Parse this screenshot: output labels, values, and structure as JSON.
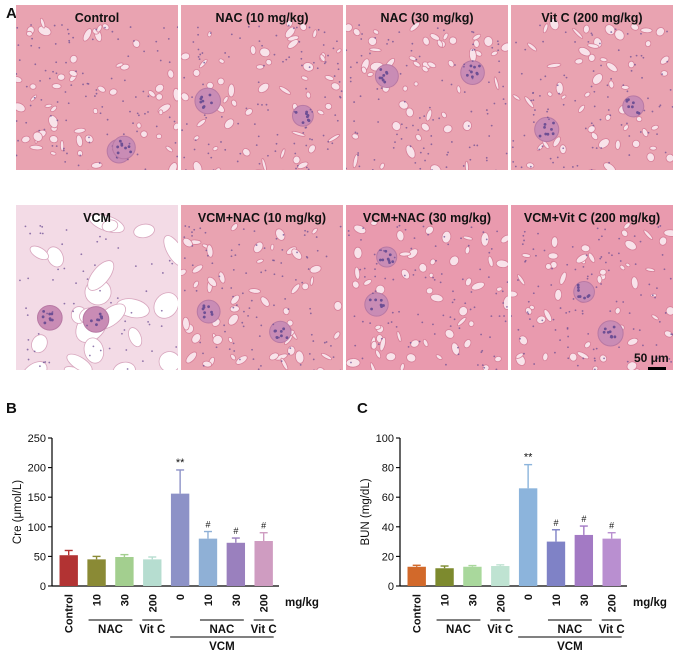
{
  "panels": {
    "a": "A",
    "b": "B",
    "c": "C"
  },
  "micrographs": [
    {
      "label": "Control",
      "tone": "normal"
    },
    {
      "label": "NAC (10 mg/kg)",
      "tone": "normal"
    },
    {
      "label": "NAC (30 mg/kg)",
      "tone": "normal"
    },
    {
      "label": "Vit C (200 mg/kg)",
      "tone": "normal"
    },
    {
      "label": "VCM",
      "tone": "damaged"
    },
    {
      "label": "VCM+NAC (10 mg/kg)",
      "tone": "normal"
    },
    {
      "label": "VCM+NAC (30 mg/kg)",
      "tone": "mild"
    },
    {
      "label": "VCM+Vit C (200 mg/kg)",
      "tone": "mild"
    }
  ],
  "scale_bar_label": "50 μm",
  "chart_data": [
    {
      "type": "bar",
      "ylabel": "Cre (μmol/L)",
      "ylim": [
        0,
        250
      ],
      "yticks": [
        0,
        50,
        100,
        150,
        200,
        250
      ],
      "categories": [
        "Control",
        "10",
        "30",
        "200",
        "0",
        "10",
        "30",
        "200"
      ],
      "values": [
        52,
        45,
        49,
        45,
        156,
        80,
        73,
        76
      ],
      "errors": [
        8,
        5,
        4,
        4,
        40,
        12,
        8,
        14
      ],
      "annotations": [
        "",
        "",
        "",
        "",
        "**",
        "#",
        "#",
        "#"
      ],
      "colors": [
        "#b23333",
        "#8a8a35",
        "#a3cf8f",
        "#b6ddd0",
        "#8d92c7",
        "#8fb0d6",
        "#9a80be",
        "#cf9cc1"
      ],
      "unit_label": "mg/kg",
      "group_labels": {
        "nac": "NAC",
        "vitc": "Vit C",
        "vcm": "VCM"
      }
    },
    {
      "type": "bar",
      "ylabel": "BUN (mg/dL)",
      "ylim": [
        0,
        100
      ],
      "yticks": [
        0,
        20,
        40,
        60,
        80,
        100
      ],
      "categories": [
        "Control",
        "10",
        "30",
        "200",
        "0",
        "10",
        "30",
        "200"
      ],
      "values": [
        13,
        12,
        13,
        13.5,
        66,
        30,
        34.5,
        32
      ],
      "errors": [
        1,
        1.5,
        0.8,
        0.8,
        16,
        8,
        6,
        4
      ],
      "annotations": [
        "",
        "",
        "",
        "",
        "**",
        "#",
        "#",
        "#"
      ],
      "colors": [
        "#d2692a",
        "#7d8a2e",
        "#a9d89c",
        "#bfe3d2",
        "#8cb4dc",
        "#7f82c6",
        "#a37ac4",
        "#b98fd0"
      ],
      "unit_label": "mg/kg",
      "group_labels": {
        "nac": "NAC",
        "vitc": "Vit C",
        "vcm": "VCM"
      }
    }
  ]
}
